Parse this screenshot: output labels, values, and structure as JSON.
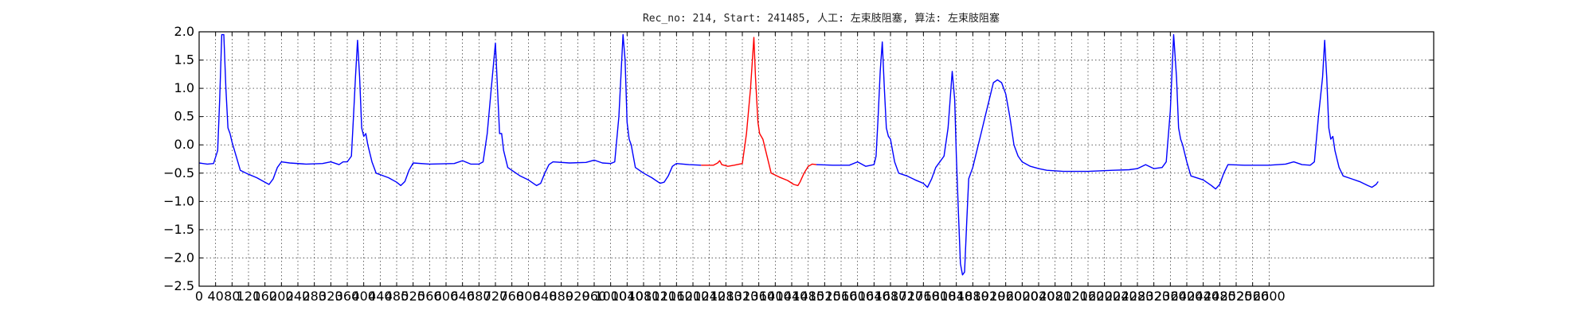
{
  "chart_data": {
    "type": "line",
    "title": "Rec_no: 214, Start: 241485, 人工: 左束肢阻塞, 算法: 左束肢阻塞",
    "xlabel": "",
    "ylabel": "",
    "xlim": [
      0,
      3000
    ],
    "ylim": [
      -2.5,
      2.0
    ],
    "grid": true,
    "x_ticks": [
      0,
      40,
      80,
      120,
      160,
      200,
      240,
      280,
      320,
      360,
      400,
      440,
      480,
      520,
      560,
      600,
      640,
      680,
      720,
      760,
      800,
      840,
      880,
      920,
      960,
      1000,
      1040,
      1080,
      1120,
      1160,
      1200,
      1240,
      1280,
      1320,
      1360,
      1400,
      1440,
      1480,
      1520,
      1560,
      1600,
      1640,
      1680,
      1720,
      1760,
      1800,
      1840,
      1880,
      1920,
      1960,
      2000,
      2040,
      2080,
      2120,
      2160,
      2200,
      2240,
      2280,
      2320,
      2360,
      2400,
      2440,
      2480,
      2520,
      2560,
      2600
    ],
    "y_ticks": [
      "2.0",
      "1.5",
      "1.0",
      "0.5",
      "0.0",
      "−0.5",
      "−1.0",
      "−1.5",
      "−2.0",
      "−2.5"
    ],
    "series": [
      {
        "color": "#0000ff",
        "points": [
          [
            0,
            -0.32
          ],
          [
            20,
            -0.34
          ],
          [
            35,
            -0.33
          ],
          [
            45,
            -0.1
          ],
          [
            50,
            0.8
          ],
          [
            55,
            1.95
          ],
          [
            60,
            1.95
          ],
          [
            65,
            1.0
          ],
          [
            70,
            0.3
          ],
          [
            75,
            0.2
          ],
          [
            80,
            0.05
          ],
          [
            90,
            -0.2
          ],
          [
            100,
            -0.45
          ],
          [
            120,
            -0.52
          ],
          [
            140,
            -0.58
          ],
          [
            160,
            -0.66
          ],
          [
            170,
            -0.7
          ],
          [
            180,
            -0.6
          ],
          [
            190,
            -0.4
          ],
          [
            200,
            -0.3
          ],
          [
            220,
            -0.32
          ],
          [
            260,
            -0.34
          ],
          [
            300,
            -0.33
          ],
          [
            320,
            -0.3
          ],
          [
            340,
            -0.35
          ],
          [
            350,
            -0.3
          ],
          [
            360,
            -0.3
          ],
          [
            370,
            -0.2
          ],
          [
            375,
            0.5
          ],
          [
            380,
            1.2
          ],
          [
            385,
            1.85
          ],
          [
            390,
            1.2
          ],
          [
            395,
            0.3
          ],
          [
            400,
            0.15
          ],
          [
            405,
            0.2
          ],
          [
            410,
            0.0
          ],
          [
            420,
            -0.3
          ],
          [
            430,
            -0.5
          ],
          [
            460,
            -0.58
          ],
          [
            480,
            -0.66
          ],
          [
            490,
            -0.72
          ],
          [
            500,
            -0.65
          ],
          [
            510,
            -0.45
          ],
          [
            520,
            -0.32
          ],
          [
            560,
            -0.34
          ],
          [
            620,
            -0.33
          ],
          [
            640,
            -0.28
          ],
          [
            660,
            -0.34
          ],
          [
            680,
            -0.34
          ],
          [
            690,
            -0.3
          ],
          [
            700,
            0.2
          ],
          [
            710,
            1.0
          ],
          [
            720,
            1.8
          ],
          [
            725,
            1.0
          ],
          [
            730,
            0.2
          ],
          [
            735,
            0.2
          ],
          [
            740,
            -0.1
          ],
          [
            750,
            -0.4
          ],
          [
            780,
            -0.55
          ],
          [
            800,
            -0.62
          ],
          [
            820,
            -0.72
          ],
          [
            830,
            -0.68
          ],
          [
            840,
            -0.5
          ],
          [
            850,
            -0.35
          ],
          [
            860,
            -0.3
          ],
          [
            900,
            -0.32
          ],
          [
            940,
            -0.31
          ],
          [
            960,
            -0.27
          ],
          [
            980,
            -0.32
          ],
          [
            1000,
            -0.33
          ],
          [
            1010,
            -0.3
          ],
          [
            1020,
            0.5
          ],
          [
            1030,
            1.95
          ],
          [
            1035,
            1.5
          ],
          [
            1040,
            0.4
          ],
          [
            1045,
            0.1
          ],
          [
            1050,
            0.0
          ],
          [
            1060,
            -0.4
          ],
          [
            1080,
            -0.5
          ],
          [
            1100,
            -0.58
          ],
          [
            1120,
            -0.68
          ],
          [
            1130,
            -0.66
          ],
          [
            1140,
            -0.55
          ],
          [
            1150,
            -0.38
          ],
          [
            1160,
            -0.33
          ],
          [
            1190,
            -0.35
          ],
          [
            1220,
            -0.36
          ]
        ]
      },
      {
        "color": "#ff0000",
        "points": [
          [
            1220,
            -0.36
          ],
          [
            1250,
            -0.36
          ],
          [
            1260,
            -0.32
          ],
          [
            1265,
            -0.28
          ],
          [
            1270,
            -0.35
          ],
          [
            1285,
            -0.38
          ],
          [
            1300,
            -0.36
          ],
          [
            1320,
            -0.33
          ],
          [
            1330,
            0.2
          ],
          [
            1340,
            1.0
          ],
          [
            1348,
            1.9
          ],
          [
            1352,
            1.2
          ],
          [
            1358,
            0.4
          ],
          [
            1362,
            0.2
          ],
          [
            1370,
            0.1
          ],
          [
            1380,
            -0.2
          ],
          [
            1390,
            -0.5
          ],
          [
            1410,
            -0.57
          ],
          [
            1430,
            -0.63
          ],
          [
            1445,
            -0.7
          ],
          [
            1455,
            -0.72
          ],
          [
            1460,
            -0.66
          ],
          [
            1470,
            -0.5
          ],
          [
            1480,
            -0.38
          ],
          [
            1490,
            -0.34
          ],
          [
            1500,
            -0.35
          ]
        ]
      },
      {
        "color": "#0000ff",
        "points": [
          [
            1500,
            -0.35
          ],
          [
            1540,
            -0.36
          ],
          [
            1580,
            -0.36
          ],
          [
            1600,
            -0.3
          ],
          [
            1620,
            -0.38
          ],
          [
            1640,
            -0.35
          ],
          [
            1645,
            -0.2
          ],
          [
            1650,
            0.5
          ],
          [
            1655,
            1.3
          ],
          [
            1660,
            1.82
          ],
          [
            1665,
            1.0
          ],
          [
            1670,
            0.3
          ],
          [
            1675,
            0.15
          ],
          [
            1680,
            0.1
          ],
          [
            1690,
            -0.3
          ],
          [
            1700,
            -0.5
          ],
          [
            1720,
            -0.55
          ],
          [
            1740,
            -0.62
          ],
          [
            1760,
            -0.68
          ],
          [
            1770,
            -0.75
          ],
          [
            1780,
            -0.6
          ],
          [
            1790,
            -0.4
          ],
          [
            1800,
            -0.3
          ],
          [
            1810,
            -0.2
          ],
          [
            1820,
            0.3
          ],
          [
            1830,
            1.3
          ],
          [
            1836,
            0.8
          ],
          [
            1840,
            -0.2
          ],
          [
            1845,
            -1.2
          ],
          [
            1850,
            -2.1
          ],
          [
            1855,
            -2.3
          ],
          [
            1860,
            -2.25
          ],
          [
            1865,
            -1.4
          ],
          [
            1870,
            -0.6
          ],
          [
            1880,
            -0.4
          ],
          [
            1890,
            -0.1
          ],
          [
            1900,
            0.2
          ],
          [
            1910,
            0.5
          ],
          [
            1920,
            0.8
          ],
          [
            1930,
            1.1
          ],
          [
            1940,
            1.15
          ],
          [
            1950,
            1.1
          ],
          [
            1960,
            0.9
          ],
          [
            1970,
            0.5
          ],
          [
            1980,
            0.0
          ],
          [
            1990,
            -0.2
          ],
          [
            2000,
            -0.3
          ],
          [
            2020,
            -0.38
          ],
          [
            2040,
            -0.42
          ],
          [
            2060,
            -0.45
          ],
          [
            2100,
            -0.47
          ],
          [
            2160,
            -0.47
          ],
          [
            2220,
            -0.45
          ],
          [
            2260,
            -0.44
          ],
          [
            2280,
            -0.42
          ],
          [
            2300,
            -0.35
          ],
          [
            2320,
            -0.42
          ],
          [
            2340,
            -0.4
          ],
          [
            2350,
            -0.3
          ],
          [
            2360,
            0.6
          ],
          [
            2368,
            1.95
          ],
          [
            2375,
            1.2
          ],
          [
            2380,
            0.3
          ],
          [
            2385,
            0.1
          ],
          [
            2390,
            0.0
          ],
          [
            2400,
            -0.3
          ],
          [
            2410,
            -0.55
          ],
          [
            2440,
            -0.62
          ],
          [
            2460,
            -0.72
          ],
          [
            2470,
            -0.78
          ],
          [
            2480,
            -0.7
          ],
          [
            2490,
            -0.5
          ],
          [
            2500,
            -0.35
          ],
          [
            2540,
            -0.36
          ],
          [
            2600,
            -0.36
          ],
          [
            2640,
            -0.34
          ],
          [
            2660,
            -0.3
          ],
          [
            2680,
            -0.35
          ],
          [
            2700,
            -0.36
          ],
          [
            2710,
            -0.3
          ],
          [
            2720,
            0.5
          ],
          [
            2730,
            1.2
          ],
          [
            2735,
            1.85
          ],
          [
            2740,
            1.2
          ],
          [
            2745,
            0.3
          ],
          [
            2750,
            0.1
          ],
          [
            2755,
            0.15
          ],
          [
            2760,
            -0.1
          ],
          [
            2770,
            -0.4
          ],
          [
            2780,
            -0.55
          ],
          [
            2800,
            -0.6
          ],
          [
            2820,
            -0.65
          ],
          [
            2840,
            -0.72
          ],
          [
            2850,
            -0.75
          ],
          [
            2860,
            -0.7
          ],
          [
            2865,
            -0.65
          ]
        ]
      }
    ]
  }
}
